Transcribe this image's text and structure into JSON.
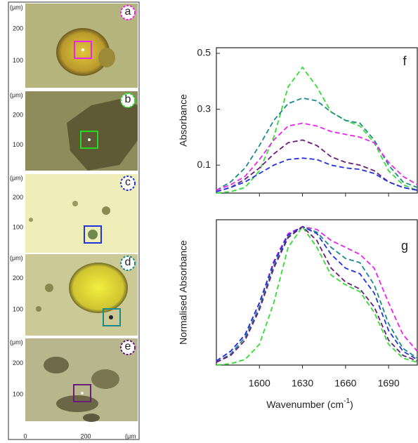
{
  "micrographs": {
    "panels": [
      {
        "label": "a",
        "unit": "(μm)",
        "yticks": [
          "200",
          "100"
        ]
      },
      {
        "label": "b",
        "unit": "(μm)",
        "yticks": [
          "200",
          "100"
        ]
      },
      {
        "label": "c",
        "unit": "(μm)",
        "yticks": [
          "200",
          "100"
        ]
      },
      {
        "label": "d",
        "unit": "(μm)",
        "yticks": [
          "200",
          "100"
        ]
      },
      {
        "label": "e",
        "unit": "(μm)",
        "yticks": [
          "200",
          "100"
        ]
      }
    ],
    "xticks": [
      "0",
      "200"
    ],
    "xunit": "(μm"
  },
  "chart_data": [
    {
      "type": "line",
      "annotation": "f",
      "ylabel": "Absorbance",
      "x": [
        1570,
        1580,
        1590,
        1600,
        1610,
        1620,
        1630,
        1640,
        1650,
        1660,
        1670,
        1680,
        1690,
        1700,
        1710
      ],
      "xlim": [
        1570,
        1710
      ],
      "xticks": [
        1600,
        1630,
        1660,
        1690
      ],
      "show_xtick_labels": false,
      "ylim": [
        0,
        0.52
      ],
      "yticks": [
        0.1,
        0.3,
        0.5
      ],
      "series": [
        {
          "color": "#33dd33",
          "values": [
            0,
            0.005,
            0.02,
            0.08,
            0.2,
            0.38,
            0.45,
            0.38,
            0.29,
            0.26,
            0.24,
            0.18,
            0.08,
            0.03,
            0.01
          ]
        },
        {
          "color": "#1a8a8a",
          "values": [
            0.01,
            0.04,
            0.09,
            0.17,
            0.26,
            0.32,
            0.34,
            0.33,
            0.29,
            0.26,
            0.25,
            0.19,
            0.1,
            0.04,
            0.02
          ]
        },
        {
          "color": "#ee22ee",
          "values": [
            0.01,
            0.03,
            0.06,
            0.12,
            0.19,
            0.24,
            0.25,
            0.24,
            0.22,
            0.21,
            0.2,
            0.18,
            0.11,
            0.06,
            0.03
          ]
        },
        {
          "color": "#6a1a7a",
          "values": [
            0.005,
            0.02,
            0.05,
            0.09,
            0.14,
            0.18,
            0.19,
            0.17,
            0.13,
            0.11,
            0.1,
            0.08,
            0.04,
            0.02,
            0.01
          ]
        },
        {
          "color": "#2233dd",
          "values": [
            0.005,
            0.02,
            0.04,
            0.07,
            0.1,
            0.12,
            0.125,
            0.12,
            0.1,
            0.09,
            0.085,
            0.07,
            0.04,
            0.02,
            0.01
          ]
        }
      ]
    },
    {
      "type": "line",
      "annotation": "g",
      "ylabel": "Normalised Absorbance",
      "xlabel": [
        "Wavenumber (cm",
        "-1",
        ")"
      ],
      "x": [
        1570,
        1580,
        1590,
        1600,
        1610,
        1620,
        1630,
        1640,
        1650,
        1660,
        1670,
        1680,
        1690,
        1700,
        1710
      ],
      "xlim": [
        1570,
        1710
      ],
      "xticks": [
        1600,
        1630,
        1660,
        1690
      ],
      "show_xtick_labels": true,
      "ylim": [
        0,
        1.05
      ],
      "series": [
        {
          "color": "#33dd33",
          "values": [
            0,
            0.01,
            0.04,
            0.15,
            0.45,
            0.85,
            1,
            0.85,
            0.65,
            0.58,
            0.53,
            0.38,
            0.15,
            0.05,
            0.02
          ]
        },
        {
          "color": "#ee22ee",
          "values": [
            0.03,
            0.1,
            0.22,
            0.45,
            0.75,
            0.95,
            1,
            0.98,
            0.9,
            0.85,
            0.8,
            0.7,
            0.45,
            0.22,
            0.1
          ]
        },
        {
          "color": "#1a8a8a",
          "values": [
            0.02,
            0.08,
            0.2,
            0.42,
            0.72,
            0.93,
            1,
            0.96,
            0.85,
            0.77,
            0.74,
            0.58,
            0.3,
            0.12,
            0.05
          ]
        },
        {
          "color": "#2233dd",
          "values": [
            0.03,
            0.1,
            0.22,
            0.45,
            0.74,
            0.94,
            1,
            0.95,
            0.8,
            0.7,
            0.66,
            0.52,
            0.25,
            0.1,
            0.04
          ]
        },
        {
          "color": "#6a1a7a",
          "values": [
            0.02,
            0.07,
            0.18,
            0.4,
            0.7,
            0.92,
            1,
            0.9,
            0.7,
            0.6,
            0.55,
            0.42,
            0.18,
            0.07,
            0.03
          ]
        }
      ]
    }
  ]
}
